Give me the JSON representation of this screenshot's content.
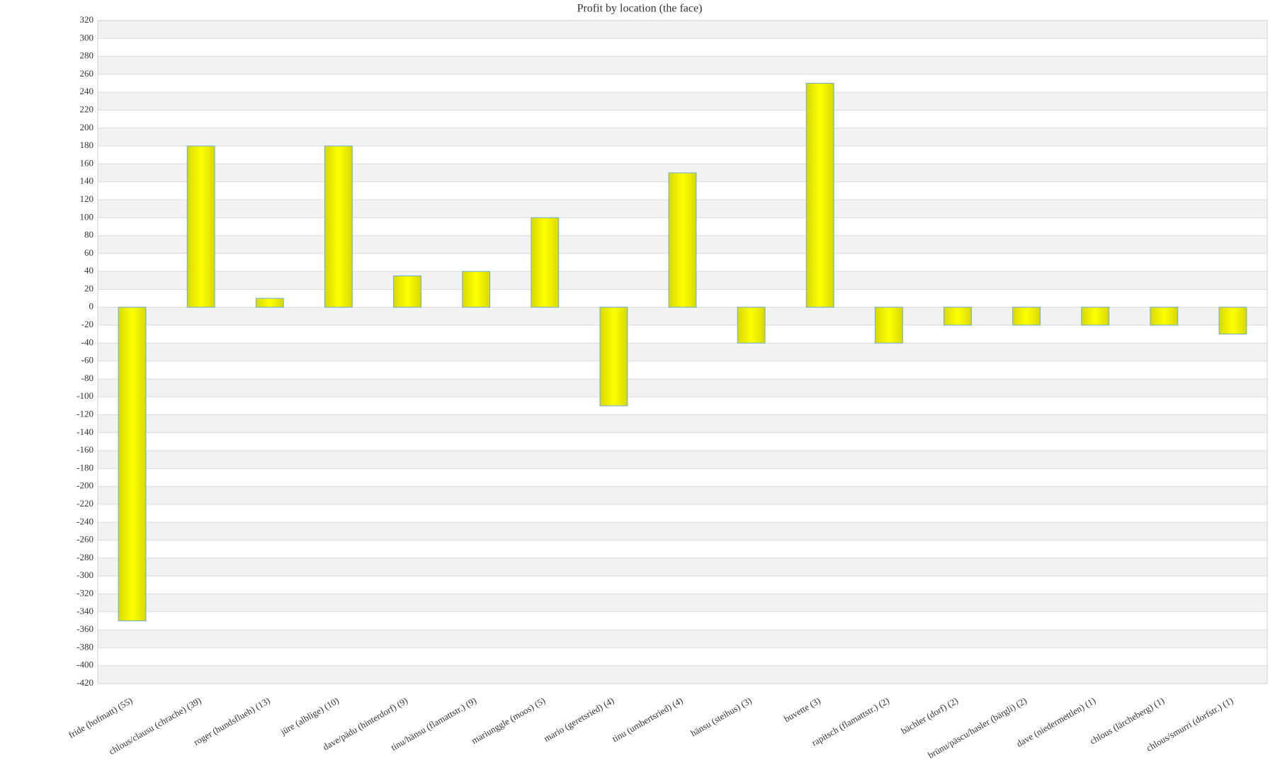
{
  "chart_data": {
    "type": "bar",
    "title": "Profit by location  (the face)",
    "categories": [
      "fride (hofmatt) (55)",
      "chlous/clausu (chrache) (39)",
      "roger (hundsflueh) (13)",
      "jüre (alblige) (10)",
      "dave/pädu (hinterdorf) (9)",
      "tinu/hänsu (flamattstr.) (9)",
      "mariunggle (moos) (5)",
      "mario (geretsried) (4)",
      "tinu (umbertsried) (4)",
      "hänsu (steihus) (3)",
      "buvette (3)",
      "rapitsch (flamattstr.) (2)",
      "bächler (dorf) (2)",
      "brünu/päscu/hasler (bärgli) (2)",
      "dave (niedermettlen) (1)",
      "chlous (lärcheberg) (1)",
      "chlous/smurri (dorfstr.) (1)"
    ],
    "values": [
      -350,
      180,
      10,
      180,
      35,
      40,
      100,
      -110,
      150,
      -40,
      250,
      -40,
      -20,
      -20,
      -20,
      -20,
      -30
    ],
    "color": "#ffff00",
    "border_color": "#6aaed6",
    "ylim": [
      -420,
      320
    ],
    "yticks": [
      -420,
      -400,
      -380,
      -360,
      -340,
      -320,
      -300,
      -280,
      -260,
      -240,
      -220,
      -200,
      -180,
      -160,
      -140,
      -120,
      -100,
      -80,
      -60,
      -40,
      -20,
      0,
      20,
      40,
      60,
      80,
      100,
      120,
      140,
      160,
      180,
      200,
      220,
      240,
      260,
      280,
      300,
      320
    ],
    "grid": true
  }
}
